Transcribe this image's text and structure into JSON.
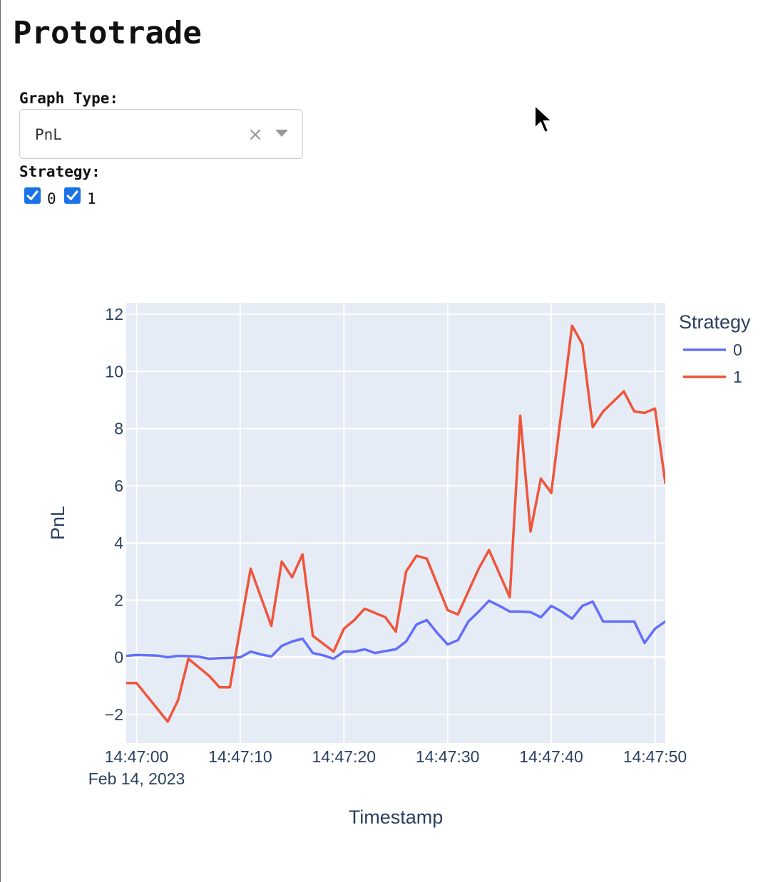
{
  "app": {
    "title": "Prototrade"
  },
  "controls": {
    "graph_type": {
      "label": "Graph Type:",
      "value": "PnL",
      "clear_icon": "×"
    },
    "strategy": {
      "label": "Strategy:",
      "options": [
        {
          "label": "0",
          "checked": true
        },
        {
          "label": "1",
          "checked": true
        }
      ]
    }
  },
  "icons": {
    "clear": "close-icon",
    "dropdown": "chevron-down-icon",
    "checkbox": "check-icon",
    "cursor": "mouse-pointer-icon"
  },
  "chart_data": {
    "type": "line",
    "title": "",
    "xlabel": "Timestamp",
    "ylabel": "PnL",
    "x_ticks": [
      "14:47:00",
      "14:47:10",
      "14:47:20",
      "14:47:30",
      "14:47:40",
      "14:47:50"
    ],
    "x_tick_values": [
      0,
      10,
      20,
      30,
      40,
      50
    ],
    "x_date_label": "Feb 14, 2023",
    "xlim": [
      "14:46:59",
      "14:47:51"
    ],
    "y_ticks": [
      -2,
      0,
      2,
      4,
      6,
      8,
      10,
      12
    ],
    "ylim": [
      -3,
      12.4
    ],
    "grid": true,
    "legend": {
      "title": "Strategy",
      "position": "right"
    },
    "colors": {
      "plot_bg": "#E5ECF6",
      "grid": "#FFFFFF",
      "text": "#2a3f5f"
    },
    "series": [
      {
        "name": "0",
        "color": "#636EFA",
        "x": [
          "14:46:59",
          "14:47:00",
          "14:47:01",
          "14:47:02",
          "14:47:03",
          "14:47:04",
          "14:47:05",
          "14:47:06",
          "14:47:07",
          "14:47:08",
          "14:47:09",
          "14:47:10",
          "14:47:11",
          "14:47:12",
          "14:47:13",
          "14:47:14",
          "14:47:15",
          "14:47:16",
          "14:47:17",
          "14:47:18",
          "14:47:19",
          "14:47:20",
          "14:47:21",
          "14:47:22",
          "14:47:23",
          "14:47:24",
          "14:47:25",
          "14:47:26",
          "14:47:27",
          "14:47:28",
          "14:47:29",
          "14:47:30",
          "14:47:31",
          "14:47:32",
          "14:47:33",
          "14:47:34",
          "14:47:35",
          "14:47:36",
          "14:47:37",
          "14:47:38",
          "14:47:39",
          "14:47:40",
          "14:47:41",
          "14:47:42",
          "14:47:43",
          "14:47:44",
          "14:47:45",
          "14:47:46",
          "14:47:47",
          "14:47:48",
          "14:47:49",
          "14:47:50",
          "14:47:51"
        ],
        "y": [
          0.05,
          0.08,
          0.07,
          0.06,
          0.0,
          0.05,
          0.04,
          0.02,
          -0.05,
          -0.03,
          -0.02,
          0.0,
          0.2,
          0.1,
          0.03,
          0.4,
          0.55,
          0.65,
          0.15,
          0.07,
          -0.05,
          0.2,
          0.2,
          0.28,
          0.15,
          0.22,
          0.28,
          0.55,
          1.15,
          1.3,
          0.85,
          0.45,
          0.6,
          1.25,
          1.6,
          1.98,
          1.8,
          1.6,
          1.6,
          1.58,
          1.4,
          1.8,
          1.6,
          1.35,
          1.8,
          1.95,
          1.25,
          1.25,
          1.25,
          1.25,
          0.5,
          1.0,
          1.25
        ]
      },
      {
        "name": "1",
        "color": "#EF553B",
        "x": [
          "14:46:59",
          "14:47:00",
          "14:47:03",
          "14:47:04",
          "14:47:05",
          "14:47:07",
          "14:47:08",
          "14:47:09",
          "14:47:11",
          "14:47:13",
          "14:47:14",
          "14:47:15",
          "14:47:16",
          "14:47:17",
          "14:47:19",
          "14:47:20",
          "14:47:21",
          "14:47:22",
          "14:47:24",
          "14:47:25",
          "14:47:26",
          "14:47:27",
          "14:47:28",
          "14:47:30",
          "14:47:31",
          "14:47:33",
          "14:47:34",
          "14:47:36",
          "14:47:37",
          "14:47:38",
          "14:47:39",
          "14:47:40",
          "14:47:42",
          "14:47:43",
          "14:47:44",
          "14:47:45",
          "14:47:47",
          "14:47:48",
          "14:47:49",
          "14:47:50",
          "14:47:51"
        ],
        "y": [
          -0.9,
          -0.9,
          -2.25,
          -1.5,
          -0.05,
          -0.65,
          -1.05,
          -1.05,
          3.1,
          1.1,
          3.35,
          2.8,
          3.6,
          0.75,
          0.2,
          1.0,
          1.3,
          1.7,
          1.4,
          0.9,
          3.0,
          3.55,
          3.45,
          1.65,
          1.5,
          3.1,
          3.75,
          2.1,
          8.45,
          4.4,
          6.25,
          5.75,
          11.6,
          10.95,
          8.05,
          8.6,
          9.3,
          8.6,
          8.55,
          8.7,
          6.1
        ]
      }
    ]
  }
}
